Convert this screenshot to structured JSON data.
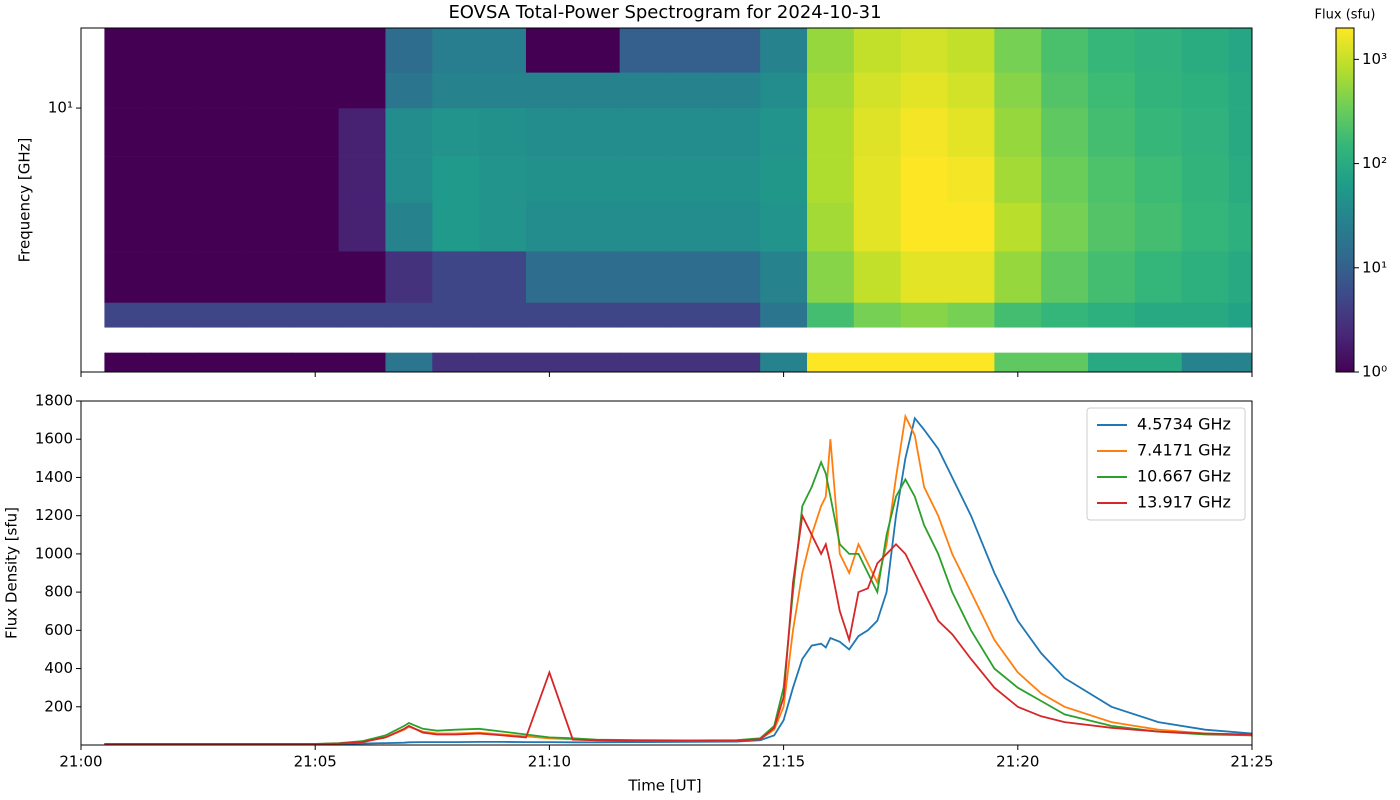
{
  "chart_data": [
    {
      "type": "heatmap",
      "title": "EOVSA Total-Power Spectrogram for 2024-10-31",
      "y_label": "Frequency [GHz]",
      "log_y": true,
      "colormap": "viridis",
      "log_color": true,
      "colorbar_label": "Flux (sfu)",
      "clim": [
        1,
        2000
      ],
      "cticks": [
        {
          "value": 1,
          "label": "10⁰"
        },
        {
          "value": 10,
          "label": "10¹"
        },
        {
          "value": 100,
          "label": "10²"
        },
        {
          "value": 1000,
          "label": "10³"
        }
      ],
      "xlim": [
        0,
        25
      ],
      "xticks": [
        0,
        5,
        10,
        15,
        20,
        25
      ],
      "ylim": [
        1.44,
        18
      ],
      "yticks": [
        {
          "value": 10,
          "label": "10¹"
        }
      ],
      "xbins": [
        0.5,
        1.5,
        2.5,
        3.5,
        4.5,
        5.5,
        6.5,
        7.5,
        8.5,
        9.5,
        10.5,
        11.5,
        12.5,
        13.5,
        14.5,
        15.5,
        16.5,
        17.5,
        18.5,
        19.5,
        20.5,
        21.5,
        22.5,
        23.5,
        24.5,
        25
      ],
      "ybins": [
        1.44,
        1.66,
        2.0,
        2.4,
        3.5,
        5,
        7,
        10,
        13,
        18
      ],
      "values": [
        [
          1,
          1,
          1,
          1,
          1,
          1,
          20,
          3,
          3,
          3,
          3,
          3,
          3,
          3,
          30,
          2000,
          2000,
          2000,
          2000,
          300,
          300,
          100,
          100,
          30,
          30
        ],
        [
          null,
          null,
          null,
          null,
          null,
          null,
          null,
          null,
          null,
          null,
          null,
          null,
          null,
          null,
          null,
          null,
          null,
          null,
          null,
          null,
          null,
          null,
          null,
          null,
          null
        ],
        [
          5,
          5,
          5,
          5,
          5,
          5,
          5,
          5,
          5,
          5,
          5,
          5,
          5,
          5,
          20,
          200,
          400,
          500,
          400,
          200,
          150,
          120,
          100,
          100,
          80
        ],
        [
          1,
          1,
          1,
          1,
          1,
          1,
          3,
          5,
          5,
          15,
          15,
          15,
          15,
          15,
          30,
          500,
          1000,
          1500,
          1500,
          600,
          300,
          200,
          150,
          120,
          100
        ],
        [
          1,
          1,
          1,
          1,
          1,
          2,
          30,
          60,
          50,
          40,
          40,
          40,
          40,
          40,
          50,
          700,
          1500,
          2000,
          2000,
          900,
          400,
          250,
          200,
          150,
          120
        ],
        [
          1,
          1,
          1,
          1,
          1,
          2,
          40,
          60,
          50,
          45,
          45,
          45,
          45,
          45,
          55,
          800,
          1500,
          2000,
          1800,
          700,
          350,
          230,
          180,
          140,
          110
        ],
        [
          1,
          1,
          1,
          1,
          1,
          2,
          40,
          50,
          45,
          40,
          40,
          40,
          40,
          40,
          50,
          800,
          1400,
          1800,
          1500,
          600,
          300,
          200,
          160,
          130,
          100
        ],
        [
          1,
          1,
          1,
          1,
          1,
          1,
          20,
          30,
          30,
          30,
          30,
          30,
          30,
          30,
          40,
          700,
          1200,
          1500,
          1200,
          500,
          250,
          180,
          140,
          120,
          100
        ],
        [
          1,
          1,
          1,
          1,
          1,
          1,
          15,
          25,
          25,
          1,
          1,
          10,
          10,
          10,
          30,
          600,
          1000,
          1200,
          1000,
          400,
          220,
          160,
          130,
          110,
          90
        ]
      ]
    },
    {
      "type": "line",
      "x_label": "Time [UT]",
      "y_label": "Flux Density [sfu]",
      "legend": "upper right",
      "xlim": [
        0,
        25
      ],
      "xticks": [
        {
          "value": 0,
          "label": "21:00"
        },
        {
          "value": 5,
          "label": "21:05"
        },
        {
          "value": 10,
          "label": "21:10"
        },
        {
          "value": 15,
          "label": "21:15"
        },
        {
          "value": 20,
          "label": "21:20"
        },
        {
          "value": 25,
          "label": "21:25"
        }
      ],
      "ylim": [
        0,
        1800
      ],
      "yticks": [
        200,
        400,
        600,
        800,
        1000,
        1200,
        1400,
        1600,
        1800
      ],
      "x": [
        0.5,
        1,
        2,
        3,
        4,
        5,
        5.5,
        6,
        6.5,
        6.9,
        7,
        7.3,
        7.6,
        8,
        8.5,
        9,
        9.5,
        10,
        10.5,
        11,
        12,
        13,
        14,
        14.5,
        14.8,
        15,
        15.2,
        15.4,
        15.6,
        15.8,
        15.9,
        16,
        16.2,
        16.4,
        16.6,
        16.8,
        17,
        17.2,
        17.4,
        17.6,
        17.8,
        18,
        18.3,
        18.6,
        19,
        19.5,
        20,
        20.5,
        21,
        22,
        23,
        24,
        25
      ],
      "series": [
        {
          "name": "4.5734 GHz",
          "color": "#1f77b4",
          "values": [
            5,
            5,
            5,
            5,
            5,
            5,
            6,
            8,
            10,
            12,
            14,
            15,
            15,
            15,
            16,
            16,
            15,
            15,
            14,
            14,
            15,
            16,
            18,
            25,
            50,
            130,
            300,
            450,
            520,
            530,
            510,
            560,
            540,
            500,
            570,
            600,
            650,
            800,
            1200,
            1500,
            1710,
            1650,
            1550,
            1400,
            1200,
            900,
            650,
            480,
            350,
            200,
            120,
            80,
            60
          ]
        },
        {
          "name": "7.4171 GHz",
          "color": "#ff7f0e",
          "values": [
            5,
            5,
            5,
            5,
            5,
            5,
            8,
            15,
            40,
            80,
            95,
            70,
            60,
            60,
            65,
            55,
            45,
            35,
            30,
            25,
            22,
            22,
            22,
            30,
            80,
            200,
            600,
            900,
            1100,
            1250,
            1300,
            1600,
            1000,
            900,
            1050,
            950,
            850,
            1050,
            1400,
            1720,
            1620,
            1350,
            1200,
            1000,
            800,
            550,
            380,
            270,
            200,
            120,
            80,
            60,
            50
          ]
        },
        {
          "name": "10.667 GHz",
          "color": "#2ca02c",
          "values": [
            5,
            5,
            5,
            5,
            5,
            6,
            10,
            20,
            50,
            100,
            115,
            85,
            75,
            80,
            85,
            70,
            55,
            40,
            35,
            28,
            25,
            24,
            25,
            35,
            100,
            300,
            800,
            1250,
            1350,
            1480,
            1420,
            1300,
            1050,
            1000,
            1000,
            900,
            800,
            1100,
            1300,
            1390,
            1300,
            1150,
            1000,
            800,
            600,
            400,
            300,
            230,
            160,
            100,
            70,
            55,
            50
          ]
        },
        {
          "name": "13.917 GHz",
          "color": "#d62728",
          "values": [
            5,
            5,
            5,
            5,
            5,
            5,
            8,
            15,
            40,
            85,
            100,
            65,
            55,
            55,
            60,
            50,
            40,
            380,
            28,
            25,
            22,
            22,
            22,
            30,
            90,
            250,
            850,
            1200,
            1100,
            1000,
            1050,
            950,
            700,
            550,
            800,
            820,
            950,
            1000,
            1050,
            1000,
            900,
            800,
            650,
            580,
            450,
            300,
            200,
            150,
            120,
            90,
            70,
            60,
            55
          ]
        }
      ]
    }
  ]
}
